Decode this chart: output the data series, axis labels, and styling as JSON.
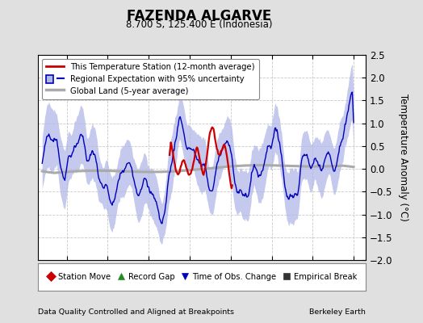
{
  "title": "FAZENDA ALGARVE",
  "subtitle": "8.700 S, 125.400 E (Indonesia)",
  "ylabel": "Temperature Anomaly (°C)",
  "xlabel_left": "Data Quality Controlled and Aligned at Breakpoints",
  "xlabel_right": "Berkeley Earth",
  "ylim": [
    -2.0,
    2.5
  ],
  "xlim": [
    1936.5,
    1976.5
  ],
  "xticks": [
    1940,
    1945,
    1950,
    1955,
    1960,
    1965,
    1970,
    1975
  ],
  "yticks": [
    -2,
    -1.5,
    -1,
    -0.5,
    0,
    0.5,
    1,
    1.5,
    2,
    2.5
  ],
  "bg_color": "#e0e0e0",
  "plot_bg_color": "#ffffff",
  "grid_color": "#c8c8c8",
  "station_color": "#cc0000",
  "regional_color": "#0000bb",
  "regional_fill_color": "#b0b8e8",
  "global_color": "#aaaaaa",
  "legend_items": [
    {
      "label": "This Temperature Station (12-month average)",
      "color": "#cc0000"
    },
    {
      "label": "Regional Expectation with 95% uncertainty",
      "color": "#0000bb"
    },
    {
      "label": "Global Land (5-year average)",
      "color": "#aaaaaa"
    }
  ],
  "bottom_legend": [
    {
      "label": "Station Move",
      "marker": "D",
      "color": "#cc0000"
    },
    {
      "label": "Record Gap",
      "marker": "^",
      "color": "#228B22"
    },
    {
      "label": "Time of Obs. Change",
      "marker": "v",
      "color": "#0000bb"
    },
    {
      "label": "Empirical Break",
      "marker": "s",
      "color": "#333333"
    }
  ]
}
